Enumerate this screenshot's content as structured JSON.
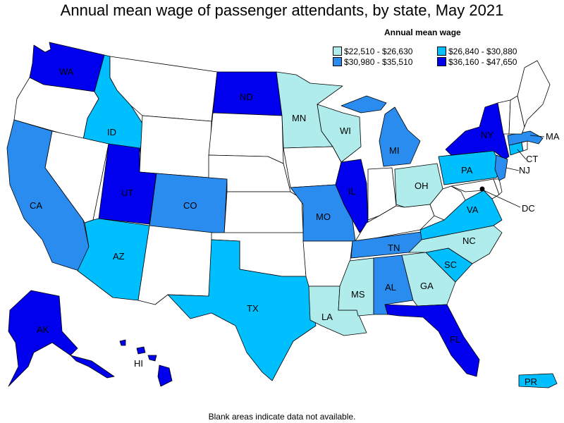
{
  "title": "Annual mean wage of passenger attendants, by state, May 2021",
  "legend": {
    "title": "Annual mean wage",
    "items": [
      {
        "label": "$22,510 - $26,630",
        "color": "#b0ecec"
      },
      {
        "label": "$26,840 - $30,880",
        "color": "#00bfff"
      },
      {
        "label": "$30,980 - $35,510",
        "color": "#2b8cf0"
      },
      {
        "label": "$36,160 - $47,650",
        "color": "#0000ee"
      }
    ]
  },
  "no_data_color": "#ffffff",
  "footnote": "Blank areas indicate data not available.",
  "state_labels": {
    "WA": "WA",
    "ND": "ND",
    "MN": "MN",
    "WI": "WI",
    "ID": "ID",
    "MI": "MI",
    "NY": "NY",
    "MA": "MA",
    "CT": "CT",
    "NJ": "NJ",
    "PA": "PA",
    "DC": "DC",
    "UT": "UT",
    "CO": "CO",
    "CA": "CA",
    "IL": "IL",
    "OH": "OH",
    "MO": "MO",
    "VA": "VA",
    "NC": "NC",
    "TN": "TN",
    "AZ": "AZ",
    "SC": "SC",
    "MS": "MS",
    "AL": "AL",
    "GA": "GA",
    "TX": "TX",
    "LA": "LA",
    "AK": "AK",
    "FL": "FL",
    "HI": "HI",
    "PR": "PR"
  },
  "state_classes": {
    "WA": 3,
    "ND": 3,
    "NY": 3,
    "UT": 3,
    "IL": 3,
    "AK": 3,
    "FL": 3,
    "HI": 3,
    "MI": 2,
    "MA": 2,
    "NJ": 2,
    "CO": 2,
    "CA": 2,
    "MO": 2,
    "TN": 2,
    "AL": 2,
    "ID": 1,
    "PA": 1,
    "VA": 1,
    "AZ": 1,
    "SC": 1,
    "TX": 1,
    "PR": 1,
    "CT": 1,
    "DC": 1,
    "MN": 0,
    "WI": 0,
    "OH": 0,
    "NC": 0,
    "MS": 0,
    "GA": 0,
    "LA": 0
  }
}
